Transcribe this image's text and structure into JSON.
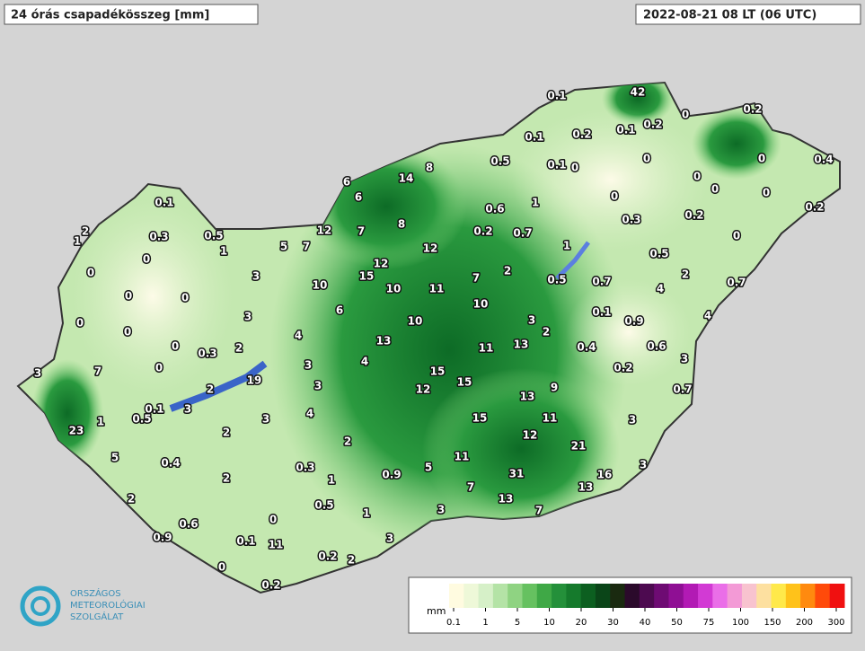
{
  "header": {
    "title": "24 órás csapadékösszeg [mm]",
    "date": "2022-08-21 08 LT (06 UTC)"
  },
  "stations": [
    0.1,
    42,
    0.1,
    0.2,
    0.1,
    0.2,
    0,
    0.2,
    0.5,
    0.1,
    0,
    0,
    0,
    0.4,
    0,
    0,
    0,
    0.2,
    0,
    0.3,
    0.2,
    0,
    14,
    8,
    6,
    6,
    0.6,
    1,
    0.2,
    0.7,
    8,
    12,
    7,
    12,
    1,
    0.5,
    2,
    0.7,
    5,
    7,
    12,
    15,
    10,
    10,
    11,
    7,
    2,
    0.5,
    0.7,
    4,
    10,
    6,
    3,
    2,
    0.1,
    0.9,
    4,
    10,
    4,
    13,
    11,
    13,
    0.4,
    0.6,
    3,
    0.2,
    4,
    3,
    15,
    15,
    9,
    0.7,
    12,
    3,
    13,
    4,
    15,
    11,
    3,
    12,
    21,
    2,
    11,
    3,
    0.3,
    1,
    0.9,
    5,
    31,
    16,
    13,
    7,
    0.5,
    13,
    7,
    1,
    3,
    3,
    0.2,
    2,
    0.2,
    0.1,
    2,
    1,
    0.3,
    0.5,
    1,
    0,
    0,
    3,
    0,
    0,
    0,
    3,
    0,
    0,
    0.3,
    2,
    3,
    7,
    0,
    2,
    19,
    0.1,
    3,
    0.5,
    3,
    23,
    1,
    2,
    5,
    0.4,
    2,
    2,
    0,
    0.6,
    0.9,
    0.1,
    11,
    0
  ],
  "legend": {
    "unit": "mm",
    "ticks": [
      0.1,
      1,
      5,
      10,
      20,
      30,
      40,
      50,
      75,
      100,
      150,
      200,
      300
    ],
    "colors": [
      "#fffbe0",
      "#eef8d8",
      "#d6f0c8",
      "#b4e3a6",
      "#8fd382",
      "#66c160",
      "#3fa846",
      "#24903a",
      "#157a2c",
      "#0c5f20",
      "#0a4518",
      "#1a2a10",
      "#2b0a2b",
      "#4d0a50",
      "#6e0b73",
      "#8f0f94",
      "#b21ab4",
      "#d23ad4",
      "#ea6ee8",
      "#f39ad6",
      "#f8c3cf",
      "#fde0a0",
      "#ffe94a",
      "#ffc21a",
      "#ff8a0f",
      "#ff4a0a",
      "#f01010"
    ]
  },
  "logo": {
    "line1": "ORSZÁGOS",
    "line2": "METEOROLÓGIAI",
    "line3": "SZOLGÁLAT"
  }
}
